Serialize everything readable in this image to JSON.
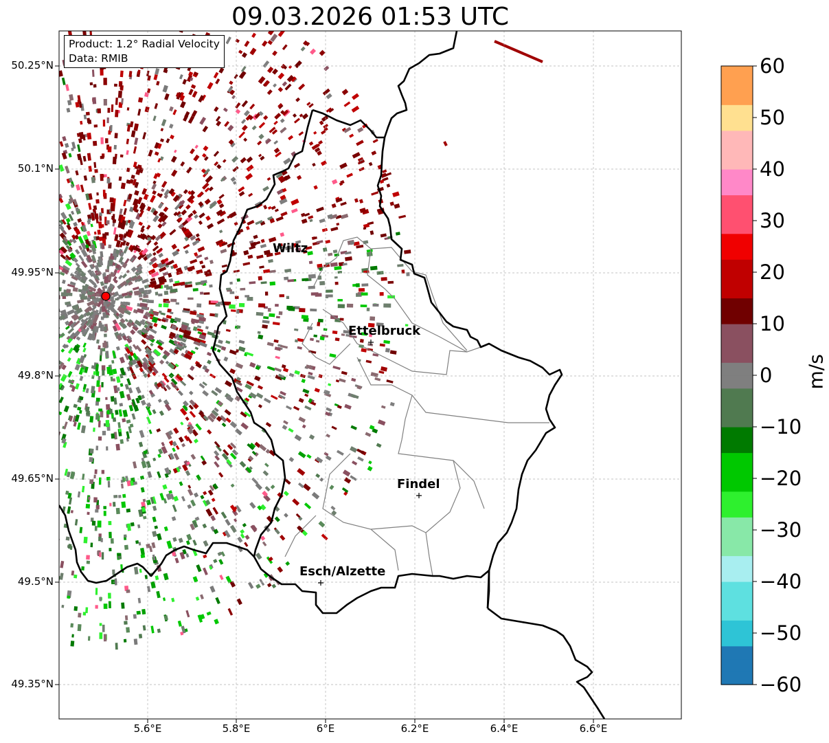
{
  "title": "09.03.2026 01:53 UTC",
  "info": {
    "product": "Product: 1.2° Radial Velocity",
    "source": "Data: RMIB"
  },
  "axes": {
    "lat_ticks": [
      "50.25°N",
      "50.1°N",
      "49.95°N",
      "49.8°N",
      "49.65°N",
      "49.5°N",
      "49.35°N"
    ],
    "lon_ticks": [
      "5.6°E",
      "5.8°E",
      "6°E",
      "6.2°E",
      "6.4°E",
      "6.6°E"
    ]
  },
  "colorbar": {
    "label": "m/s",
    "ticks": [
      "60",
      "50",
      "40",
      "30",
      "20",
      "10",
      "0",
      "−10",
      "−20",
      "−30",
      "−40",
      "−50",
      "−60"
    ],
    "range": [
      -60,
      60
    ],
    "colors": [
      "#1f78b4",
      "#2ec4d6",
      "#5ee0e0",
      "#a8eef0",
      "#88e8a8",
      "#2ef02e",
      "#00c800",
      "#007a00",
      "#507a50",
      "#7f7f7f",
      "#8a5060",
      "#700000",
      "#c00000",
      "#f00000",
      "#ff5070",
      "#ff88c8",
      "#ffb8b8",
      "#ffe090",
      "#ffa050"
    ]
  },
  "cities": [
    {
      "name": "Wiltz"
    },
    {
      "name": "Ettelbruck"
    },
    {
      "name": "Findel"
    },
    {
      "name": "Esch/Alzette"
    }
  ],
  "radar_site": {
    "lon": 5.505,
    "lat": 49.914
  },
  "legend_colors": {
    "border": "#000000",
    "admin": "#808080"
  }
}
